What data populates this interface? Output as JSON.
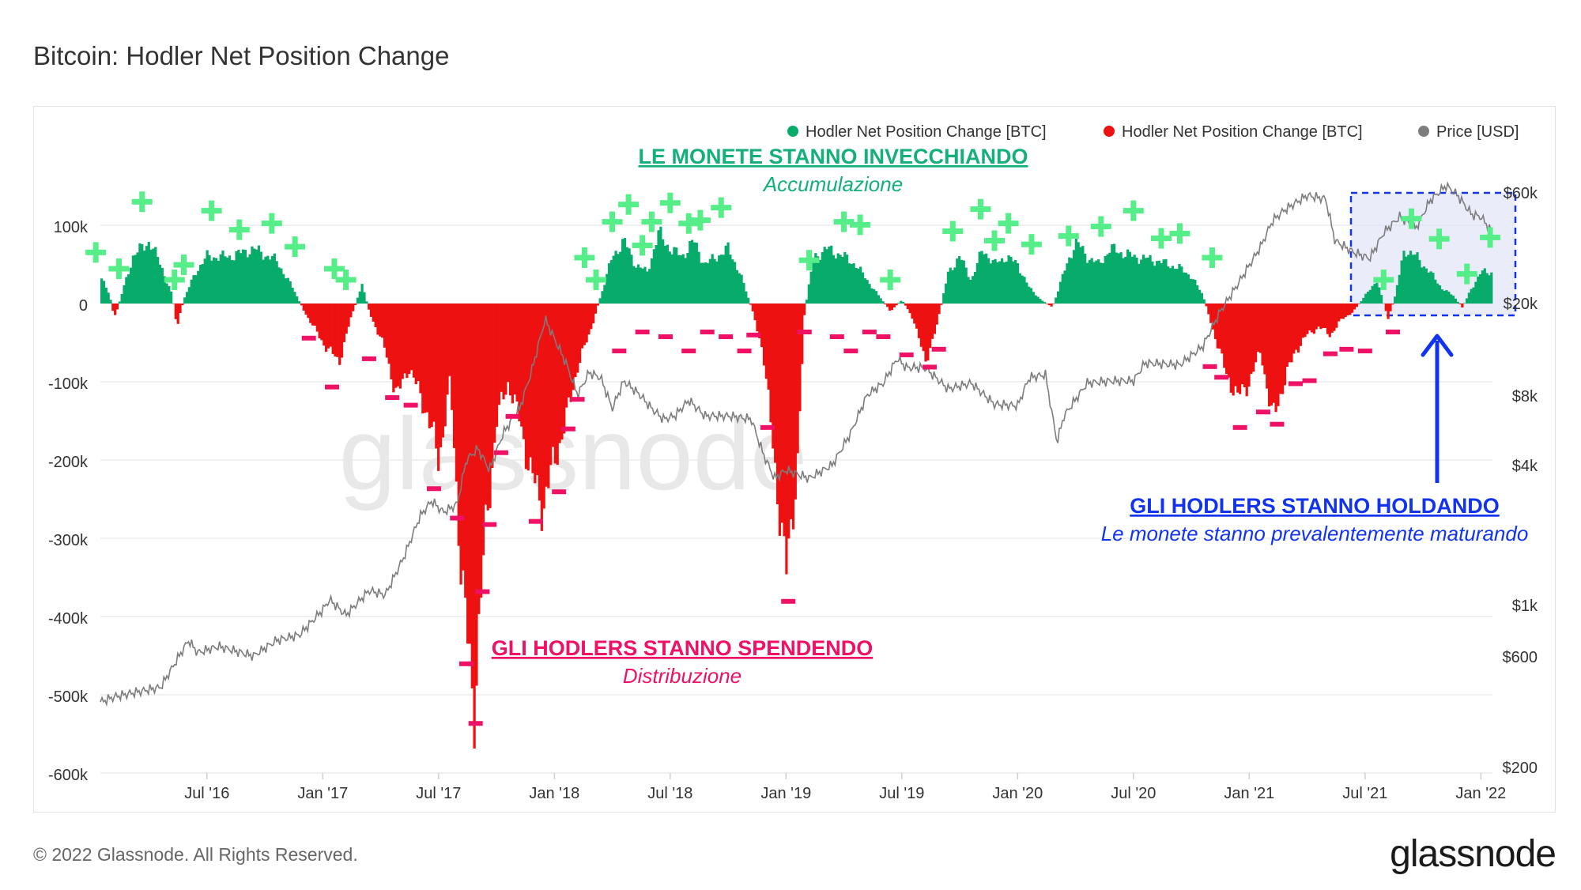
{
  "title": "Bitcoin: Hodler Net Position Change",
  "footer": {
    "copyright": "© 2022 Glassnode. All Rights Reserved.",
    "logo": "glassnode",
    "watermark": "glassnode"
  },
  "colors": {
    "positive": "#07ab6a",
    "negative": "#ee1111",
    "price": "#7d7d7d",
    "accumulation": "#15b07a",
    "distribution": "#ee1166",
    "holding": "#1133ee",
    "plus_marker": "#55ee88",
    "minus_marker": "#ee1166"
  },
  "legend": [
    {
      "label": "Hodler Net Position Change [BTC]",
      "color": "#07ab6a"
    },
    {
      "label": "Hodler Net Position Change [BTC]",
      "color": "#ee1111"
    },
    {
      "label": "Price [USD]",
      "color": "#7d7d7d"
    }
  ],
  "annotations": {
    "accumulation": {
      "title": "LE MONETE STANNO INVECCHIANDO",
      "subtitle": "Accumulazione"
    },
    "distribution": {
      "title": "GLI HODLERS STANNO SPENDENDO",
      "subtitle": "Distribuzione"
    },
    "holding": {
      "title": "GLI HODLERS STANNO HOLDANDO",
      "subtitle": "Le monete stanno prevalentemente maturando"
    }
  },
  "chart_data": {
    "type": "bar",
    "title": "Bitcoin: Hodler Net Position Change",
    "x_range": [
      2016.04,
      2022.05
    ],
    "x_ticks": [
      {
        "label": "Jul '16",
        "t": 2016.5
      },
      {
        "label": "Jan '17",
        "t": 2017.0
      },
      {
        "label": "Jul '17",
        "t": 2017.5
      },
      {
        "label": "Jan '18",
        "t": 2018.0
      },
      {
        "label": "Jul '18",
        "t": 2018.5
      },
      {
        "label": "Jan '19",
        "t": 2019.0
      },
      {
        "label": "Jul '19",
        "t": 2019.5
      },
      {
        "label": "Jan '20",
        "t": 2020.0
      },
      {
        "label": "Jul '20",
        "t": 2020.5
      },
      {
        "label": "Jan '21",
        "t": 2021.0
      },
      {
        "label": "Jul '21",
        "t": 2021.5
      },
      {
        "label": "Jan '22",
        "t": 2022.0
      }
    ],
    "y_left": {
      "range": [
        -600000,
        100000
      ],
      "ticks": [
        {
          "label": "100k",
          "v": 100000
        },
        {
          "label": "0",
          "v": 0
        },
        {
          "label": "-100k",
          "v": -100000
        },
        {
          "label": "-200k",
          "v": -200000
        },
        {
          "label": "-300k",
          "v": -300000
        },
        {
          "label": "-400k",
          "v": -400000
        },
        {
          "label": "-500k",
          "v": -500000
        },
        {
          "label": "-600k",
          "v": -600000
        }
      ]
    },
    "y_right": {
      "scale": "log",
      "ticks": [
        {
          "label": "$60k",
          "v": 60000
        },
        {
          "label": "$20k",
          "v": 20000
        },
        {
          "label": "$8k",
          "v": 8000
        },
        {
          "label": "$4k",
          "v": 4000
        },
        {
          "label": "$1k",
          "v": 1000
        },
        {
          "label": "$600",
          "v": 600
        },
        {
          "label": "$200",
          "v": 200
        }
      ]
    },
    "series": [
      {
        "name": "Hodler Net Position Change [BTC]",
        "unit": "BTC",
        "points": [
          [
            2016.04,
            35000
          ],
          [
            2016.08,
            10000
          ],
          [
            2016.1,
            -20000
          ],
          [
            2016.14,
            20000
          ],
          [
            2016.18,
            60000
          ],
          [
            2016.25,
            80000
          ],
          [
            2016.3,
            50000
          ],
          [
            2016.35,
            10000
          ],
          [
            2016.37,
            -30000
          ],
          [
            2016.4,
            5000
          ],
          [
            2016.45,
            40000
          ],
          [
            2016.5,
            60000
          ],
          [
            2016.6,
            60000
          ],
          [
            2016.7,
            70000
          ],
          [
            2016.8,
            55000
          ],
          [
            2016.87,
            20000
          ],
          [
            2016.92,
            -10000
          ],
          [
            2017.0,
            -50000
          ],
          [
            2017.07,
            -75000
          ],
          [
            2017.12,
            -20000
          ],
          [
            2017.17,
            25000
          ],
          [
            2017.2,
            -10000
          ],
          [
            2017.27,
            -60000
          ],
          [
            2017.32,
            -120000
          ],
          [
            2017.37,
            -80000
          ],
          [
            2017.45,
            -140000
          ],
          [
            2017.5,
            -200000
          ],
          [
            2017.55,
            -100000
          ],
          [
            2017.6,
            -350000
          ],
          [
            2017.65,
            -520000
          ],
          [
            2017.7,
            -300000
          ],
          [
            2017.75,
            -150000
          ],
          [
            2017.8,
            -100000
          ],
          [
            2017.85,
            -150000
          ],
          [
            2017.9,
            -220000
          ],
          [
            2017.95,
            -260000
          ],
          [
            2018.0,
            -200000
          ],
          [
            2018.05,
            -150000
          ],
          [
            2018.1,
            -80000
          ],
          [
            2018.15,
            -40000
          ],
          [
            2018.2,
            10000
          ],
          [
            2018.25,
            60000
          ],
          [
            2018.3,
            80000
          ],
          [
            2018.35,
            50000
          ],
          [
            2018.4,
            40000
          ],
          [
            2018.45,
            90000
          ],
          [
            2018.5,
            70000
          ],
          [
            2018.55,
            60000
          ],
          [
            2018.6,
            80000
          ],
          [
            2018.65,
            50000
          ],
          [
            2018.7,
            60000
          ],
          [
            2018.75,
            70000
          ],
          [
            2018.8,
            40000
          ],
          [
            2018.85,
            -5000
          ],
          [
            2018.9,
            -60000
          ],
          [
            2018.95,
            -200000
          ],
          [
            2019.0,
            -350000
          ],
          [
            2019.05,
            -200000
          ],
          [
            2019.08,
            -10000
          ],
          [
            2019.12,
            60000
          ],
          [
            2019.18,
            70000
          ],
          [
            2019.25,
            60000
          ],
          [
            2019.3,
            50000
          ],
          [
            2019.35,
            30000
          ],
          [
            2019.4,
            10000
          ],
          [
            2019.45,
            -10000
          ],
          [
            2019.5,
            5000
          ],
          [
            2019.55,
            -20000
          ],
          [
            2019.6,
            -75000
          ],
          [
            2019.65,
            -30000
          ],
          [
            2019.7,
            40000
          ],
          [
            2019.75,
            60000
          ],
          [
            2019.8,
            30000
          ],
          [
            2019.85,
            70000
          ],
          [
            2019.9,
            50000
          ],
          [
            2019.95,
            60000
          ],
          [
            2020.0,
            50000
          ],
          [
            2020.05,
            20000
          ],
          [
            2020.1,
            5000
          ],
          [
            2020.15,
            -5000
          ],
          [
            2020.2,
            40000
          ],
          [
            2020.25,
            80000
          ],
          [
            2020.3,
            60000
          ],
          [
            2020.35,
            50000
          ],
          [
            2020.4,
            70000
          ],
          [
            2020.5,
            60000
          ],
          [
            2020.6,
            55000
          ],
          [
            2020.7,
            45000
          ],
          [
            2020.75,
            35000
          ],
          [
            2020.8,
            10000
          ],
          [
            2020.85,
            -40000
          ],
          [
            2020.9,
            -90000
          ],
          [
            2020.95,
            -120000
          ],
          [
            2021.0,
            -100000
          ],
          [
            2021.05,
            -60000
          ],
          [
            2021.1,
            -150000
          ],
          [
            2021.15,
            -100000
          ],
          [
            2021.2,
            -60000
          ],
          [
            2021.25,
            -40000
          ],
          [
            2021.3,
            -30000
          ],
          [
            2021.35,
            -40000
          ],
          [
            2021.4,
            -20000
          ],
          [
            2021.45,
            -10000
          ],
          [
            2021.5,
            10000
          ],
          [
            2021.55,
            30000
          ],
          [
            2021.6,
            -20000
          ],
          [
            2021.63,
            10000
          ],
          [
            2021.67,
            70000
          ],
          [
            2021.72,
            60000
          ],
          [
            2021.78,
            40000
          ],
          [
            2021.83,
            20000
          ],
          [
            2021.88,
            10000
          ],
          [
            2021.92,
            -5000
          ],
          [
            2021.96,
            20000
          ],
          [
            2022.0,
            40000
          ],
          [
            2022.05,
            40000
          ]
        ]
      },
      {
        "name": "Price [USD]",
        "unit": "USD",
        "points": [
          [
            2016.04,
            380
          ],
          [
            2016.1,
            400
          ],
          [
            2016.2,
            420
          ],
          [
            2016.3,
            440
          ],
          [
            2016.42,
            700
          ],
          [
            2016.46,
            620
          ],
          [
            2016.55,
            660
          ],
          [
            2016.7,
            600
          ],
          [
            2016.8,
            700
          ],
          [
            2016.9,
            740
          ],
          [
            2017.0,
            950
          ],
          [
            2017.03,
            1050
          ],
          [
            2017.1,
            900
          ],
          [
            2017.2,
            1150
          ],
          [
            2017.27,
            1100
          ],
          [
            2017.35,
            1600
          ],
          [
            2017.42,
            2400
          ],
          [
            2017.47,
            2800
          ],
          [
            2017.52,
            2500
          ],
          [
            2017.58,
            2700
          ],
          [
            2017.62,
            4200
          ],
          [
            2017.67,
            4700
          ],
          [
            2017.72,
            3800
          ],
          [
            2017.78,
            5500
          ],
          [
            2017.85,
            7000
          ],
          [
            2017.9,
            10000
          ],
          [
            2017.96,
            17000
          ],
          [
            2018.0,
            14000
          ],
          [
            2018.05,
            11000
          ],
          [
            2018.1,
            8000
          ],
          [
            2018.15,
            10000
          ],
          [
            2018.2,
            9500
          ],
          [
            2018.25,
            7000
          ],
          [
            2018.3,
            9200
          ],
          [
            2018.37,
            8000
          ],
          [
            2018.42,
            7000
          ],
          [
            2018.47,
            6300
          ],
          [
            2018.52,
            6500
          ],
          [
            2018.58,
            7600
          ],
          [
            2018.65,
            6500
          ],
          [
            2018.75,
            6500
          ],
          [
            2018.85,
            6300
          ],
          [
            2018.9,
            4500
          ],
          [
            2018.95,
            3500
          ],
          [
            2019.0,
            3800
          ],
          [
            2019.1,
            3500
          ],
          [
            2019.2,
            4000
          ],
          [
            2019.28,
            5500
          ],
          [
            2019.35,
            8000
          ],
          [
            2019.42,
            9000
          ],
          [
            2019.48,
            11500
          ],
          [
            2019.52,
            10500
          ],
          [
            2019.6,
            10500
          ],
          [
            2019.7,
            8500
          ],
          [
            2019.8,
            9000
          ],
          [
            2019.9,
            7300
          ],
          [
            2020.0,
            7200
          ],
          [
            2020.05,
            9500
          ],
          [
            2020.12,
            9800
          ],
          [
            2020.17,
            5000
          ],
          [
            2020.2,
            6500
          ],
          [
            2020.3,
            9000
          ],
          [
            2020.4,
            9200
          ],
          [
            2020.5,
            9200
          ],
          [
            2020.55,
            11000
          ],
          [
            2020.7,
            10800
          ],
          [
            2020.8,
            13000
          ],
          [
            2020.87,
            18000
          ],
          [
            2020.95,
            24000
          ],
          [
            2021.05,
            35000
          ],
          [
            2021.1,
            45000
          ],
          [
            2021.15,
            50000
          ],
          [
            2021.25,
            58000
          ],
          [
            2021.33,
            56000
          ],
          [
            2021.37,
            37000
          ],
          [
            2021.45,
            33000
          ],
          [
            2021.52,
            31000
          ],
          [
            2021.58,
            40000
          ],
          [
            2021.65,
            47000
          ],
          [
            2021.72,
            42000
          ],
          [
            2021.78,
            55000
          ],
          [
            2021.85,
            64000
          ],
          [
            2021.9,
            58000
          ],
          [
            2021.96,
            48000
          ],
          [
            2022.0,
            47000
          ],
          [
            2022.05,
            40000
          ]
        ]
      }
    ],
    "plus_markers_t": [
      2016.02,
      2016.12,
      2016.22,
      2016.36,
      2016.4,
      2016.52,
      2016.64,
      2016.78,
      2016.88,
      2017.1,
      2017.05,
      2018.13,
      2018.18,
      2018.25,
      2018.32,
      2018.38,
      2018.42,
      2018.5,
      2018.58,
      2018.63,
      2018.72,
      2019.1,
      2019.25,
      2019.32,
      2019.45,
      2019.72,
      2019.84,
      2019.9,
      2019.96,
      2020.06,
      2020.22,
      2020.36,
      2020.5,
      2020.62,
      2020.7,
      2020.84,
      2021.58,
      2021.7,
      2021.82,
      2021.94,
      2022.04
    ],
    "minus_markers_t": [
      2016.94,
      2017.04,
      2017.2,
      2017.3,
      2017.38,
      2017.48,
      2017.58,
      2017.62,
      2017.66,
      2017.69,
      2017.72,
      2017.77,
      2017.82,
      2017.92,
      2018.02,
      2018.06,
      2018.1,
      2018.28,
      2018.38,
      2018.48,
      2018.58,
      2018.66,
      2018.74,
      2018.82,
      2018.86,
      2018.92,
      2019.01,
      2019.08,
      2019.22,
      2019.28,
      2019.36,
      2019.42,
      2019.52,
      2019.62,
      2019.66,
      2020.83,
      2020.88,
      2020.96,
      2021.06,
      2021.12,
      2021.2,
      2021.26,
      2021.35,
      2021.42,
      2021.5,
      2021.62
    ]
  }
}
